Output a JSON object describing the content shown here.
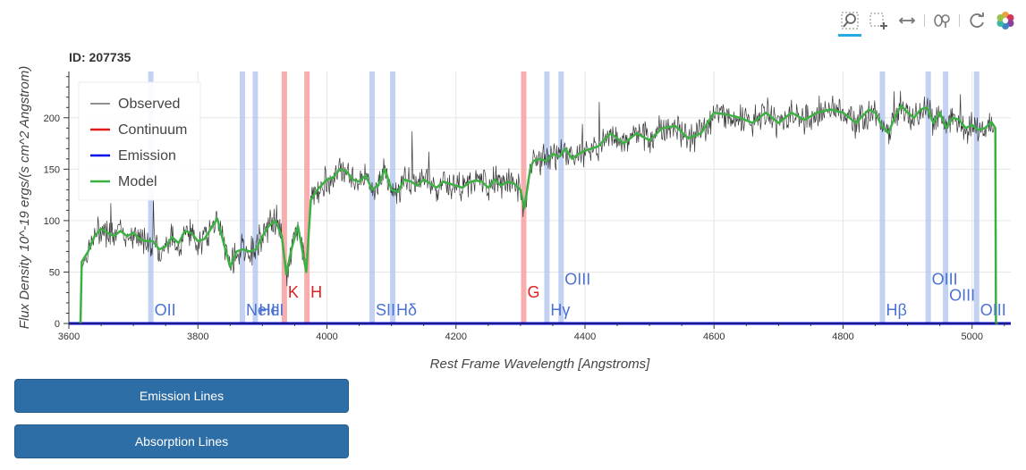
{
  "title": "ID: 207735",
  "toolbar": {
    "tools": [
      "box-zoom-icon",
      "box-select-icon",
      "pan-icon",
      "hover-icon",
      "reset-icon",
      "bokeh-logo-icon"
    ]
  },
  "buttons": {
    "emission": "Emission Lines",
    "absorption": "Absorption Lines"
  },
  "colors": {
    "observed": "#222222",
    "continuum": "#e31a1c",
    "emission": "#0000ee",
    "model": "#3cb043",
    "emission_band": "#a9bdec",
    "absorption_band": "#f7a0a0",
    "emission_label": "#4a72d4",
    "absorption_label": "#e02020",
    "button": "#2e6ea6"
  },
  "chart_data": {
    "type": "line",
    "title": "ID: 207735",
    "xlabel": "Rest Frame Wavelength [Angstroms]",
    "ylabel": "Flux Density   10^-19 ergs/(s cm^2 Angstrom)",
    "xlim": [
      3600,
      5060
    ],
    "ylim": [
      0,
      245
    ],
    "xticks": [
      3600,
      3800,
      4000,
      4200,
      4400,
      4600,
      4800,
      5000
    ],
    "yticks": [
      0,
      50,
      100,
      150,
      200
    ],
    "grid": true,
    "legend": {
      "placement": "top-left",
      "entries": [
        {
          "name": "Observed",
          "color": "#222222"
        },
        {
          "name": "Continuum",
          "color": "#e31a1c"
        },
        {
          "name": "Emission",
          "color": "#0000ee"
        },
        {
          "name": "Model",
          "color": "#3cb043"
        }
      ]
    },
    "series": [
      {
        "name": "Model",
        "x": [
          3618,
          3620,
          3630,
          3640,
          3650,
          3660,
          3670,
          3680,
          3690,
          3700,
          3710,
          3720,
          3730,
          3740,
          3750,
          3760,
          3770,
          3780,
          3790,
          3800,
          3810,
          3820,
          3830,
          3840,
          3850,
          3860,
          3870,
          3880,
          3890,
          3900,
          3910,
          3920,
          3930,
          3937,
          3945,
          3955,
          3968,
          3975,
          3985,
          4000,
          4010,
          4020,
          4030,
          4040,
          4050,
          4060,
          4070,
          4080,
          4090,
          4100,
          4110,
          4120,
          4130,
          4140,
          4150,
          4160,
          4170,
          4180,
          4190,
          4200,
          4210,
          4220,
          4230,
          4240,
          4250,
          4260,
          4270,
          4280,
          4290,
          4300,
          4306,
          4315,
          4320,
          4330,
          4340,
          4350,
          4360,
          4370,
          4380,
          4390,
          4400,
          4420,
          4440,
          4460,
          4480,
          4500,
          4520,
          4540,
          4560,
          4580,
          4600,
          4620,
          4640,
          4660,
          4680,
          4700,
          4720,
          4740,
          4760,
          4780,
          4800,
          4820,
          4840,
          4850,
          4860,
          4870,
          4880,
          4890,
          4900,
          4910,
          4920,
          4930,
          4940,
          4950,
          4960,
          4970,
          4980,
          4990,
          5000,
          5010,
          5020,
          5030,
          5036,
          5037,
          5040
        ],
        "y": [
          0,
          60,
          70,
          85,
          92,
          88,
          85,
          90,
          85,
          88,
          82,
          80,
          80,
          72,
          75,
          84,
          78,
          90,
          88,
          80,
          82,
          92,
          102,
          78,
          55,
          70,
          72,
          70,
          72,
          85,
          95,
          100,
          85,
          48,
          72,
          95,
          50,
          120,
          130,
          140,
          142,
          150,
          148,
          140,
          138,
          144,
          130,
          135,
          150,
          130,
          128,
          140,
          138,
          134,
          140,
          136,
          132,
          138,
          136,
          134,
          132,
          137,
          139,
          138,
          132,
          140,
          134,
          138,
          136,
          130,
          112,
          150,
          158,
          160,
          158,
          165,
          162,
          170,
          160,
          165,
          168,
          172,
          185,
          175,
          185,
          178,
          190,
          192,
          180,
          185,
          205,
          203,
          200,
          195,
          205,
          195,
          205,
          198,
          205,
          208,
          205,
          195,
          208,
          205,
          192,
          185,
          200,
          212,
          205,
          200,
          208,
          210,
          195,
          205,
          190,
          200,
          198,
          190,
          193,
          188,
          190,
          196,
          190,
          0,
          0
        ]
      },
      {
        "name": "Emission",
        "x": [
          3600,
          5060
        ],
        "y": [
          0,
          0
        ]
      }
    ],
    "emission_lines": [
      {
        "name": "OII",
        "x": 3727,
        "label_y": 8
      },
      {
        "name": "NeIII",
        "x": 3869,
        "label_y": 8
      },
      {
        "name": "HeI",
        "x": 3889,
        "label_y": 8
      },
      {
        "name": "SII",
        "x": 4070,
        "label_y": 8
      },
      {
        "name": "Hδ",
        "x": 4102,
        "label_y": 8
      },
      {
        "name": "Hγ",
        "x": 4341,
        "label_y": 8
      },
      {
        "name": "OIII",
        "x": 4363,
        "label_y": 38
      },
      {
        "name": "Hβ",
        "x": 4861,
        "label_y": 8
      },
      {
        "name": "OIII",
        "x": 4932,
        "label_y": 38
      },
      {
        "name": "OIII",
        "x": 4959,
        "label_y": 22
      },
      {
        "name": "OIII",
        "x": 5007,
        "label_y": 8
      }
    ],
    "absorption_lines": [
      {
        "name": "K",
        "x": 3934,
        "label_y": 25
      },
      {
        "name": "H",
        "x": 3969,
        "label_y": 25
      },
      {
        "name": "G",
        "x": 4305,
        "label_y": 25
      }
    ]
  }
}
